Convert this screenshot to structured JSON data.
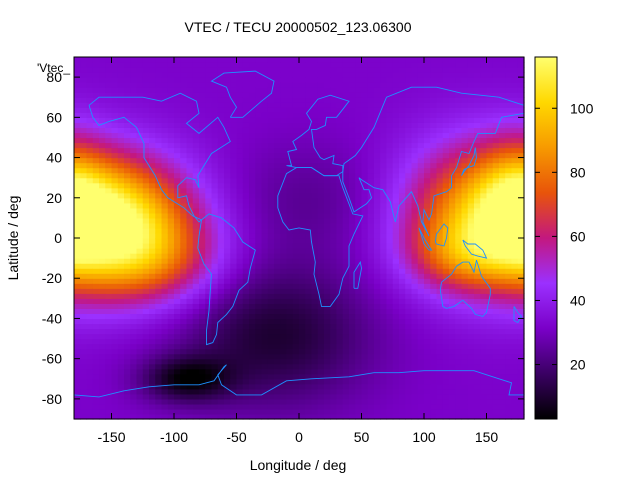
{
  "chart_data": {
    "type": "heatmap",
    "title": "VTEC / TECU 20000502_123.06300",
    "xlabel": "Longitude / deg",
    "ylabel": "Latitude / deg",
    "key_label": "'Vtec_",
    "xlim": [
      -180,
      180
    ],
    "ylim": [
      -90,
      90
    ],
    "x_ticks": [
      -150,
      -100,
      -50,
      0,
      50,
      100,
      150
    ],
    "y_ticks": [
      -80,
      -60,
      -40,
      -20,
      0,
      20,
      40,
      60,
      80
    ],
    "colorbar": {
      "range": [
        3,
        116
      ],
      "ticks": [
        20,
        40,
        60,
        80,
        100
      ],
      "palette": [
        "#000000",
        "#3a0063",
        "#7a00c8",
        "#9b30ff",
        "#c3187f",
        "#e8540a",
        "#f79a00",
        "#ffd800",
        "#ffff6e"
      ]
    },
    "grid": false,
    "overlay": "coastlines",
    "coastline_color": "#1e90ff",
    "cell_size_deg": [
      5,
      2.5
    ],
    "field_blobs": [
      {
        "lon": -150,
        "lat": 8,
        "amp": 76,
        "sx": 45,
        "sy": 22
      },
      {
        "lon": -115,
        "lat": -12,
        "amp": 24,
        "sx": 40,
        "sy": 16
      },
      {
        "lon": 145,
        "lat": 12,
        "amp": 50,
        "sx": 45,
        "sy": 25
      },
      {
        "lon": 130,
        "lat": -8,
        "amp": 22,
        "sx": 30,
        "sy": 12
      },
      {
        "lon": 175,
        "lat": 20,
        "amp": 20,
        "sx": 20,
        "sy": 20
      },
      {
        "lon": -20,
        "lat": -48,
        "amp": -22,
        "sx": 55,
        "sy": 25
      },
      {
        "lon": -90,
        "lat": -70,
        "amp": -24,
        "sx": 25,
        "sy": 8
      },
      {
        "lon": 10,
        "lat": 20,
        "amp": -8,
        "sx": 50,
        "sy": 20
      }
    ],
    "field_base": 32
  }
}
